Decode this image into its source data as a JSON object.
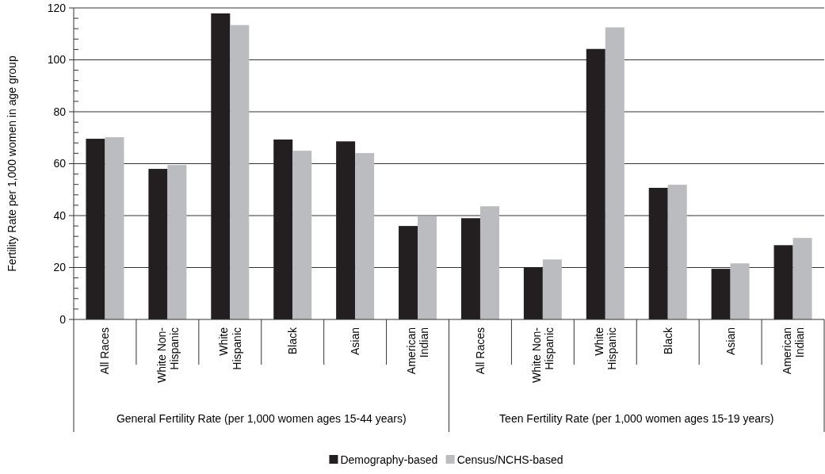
{
  "chart_data": {
    "type": "bar",
    "ylabel": "Fertility Rate per 1,000 women in age group",
    "categories": [
      "All Races",
      "White Non-Hispanic",
      "White Hispanic",
      "Black",
      "Asian",
      "American Indian",
      "All Races",
      "White Non-Hispanic",
      "White Hispanic",
      "Black",
      "Asian",
      "American Indian"
    ],
    "series": [
      {
        "name": "Demography-based",
        "color": "#231f20",
        "values": [
          69.6,
          58.0,
          117.9,
          69.3,
          68.6,
          36.0,
          39.0,
          20.1,
          104.2,
          50.7,
          19.5,
          28.6
        ]
      },
      {
        "name": "Census/NCHS-based",
        "color": "#bbbcbf",
        "values": [
          70.2,
          59.5,
          113.4,
          65.0,
          64.1,
          39.8,
          43.6,
          23.1,
          112.5,
          51.9,
          21.6,
          31.4
        ]
      }
    ],
    "ylim": [
      0,
      120
    ],
    "yticks": [
      0,
      {
        "value": 4,
        "label": null
      },
      {
        "value": 8,
        "label": null
      },
      {
        "value": 12,
        "label": null
      },
      {
        "value": 16,
        "label": null
      },
      20,
      {
        "value": 24,
        "label": null
      },
      {
        "value": 28,
        "label": null
      },
      {
        "value": 32,
        "label": null
      },
      {
        "value": 36,
        "label": null
      },
      40,
      {
        "value": 44,
        "label": null
      },
      {
        "value": 48,
        "label": null
      },
      {
        "value": 52,
        "label": null
      },
      {
        "value": 56,
        "label": null
      },
      60,
      {
        "value": 64,
        "label": null
      },
      {
        "value": 68,
        "label": null
      },
      {
        "value": 72,
        "label": null
      },
      {
        "value": 76,
        "label": null
      },
      80,
      {
        "value": 84,
        "label": null
      },
      {
        "value": 88,
        "label": null
      },
      {
        "value": 92,
        "label": null
      },
      {
        "value": 96,
        "label": null
      },
      100,
      {
        "value": 104,
        "label": null
      },
      {
        "value": 108,
        "label": null
      },
      {
        "value": 112,
        "label": null
      },
      {
        "value": 116,
        "label": null
      },
      120
    ],
    "annotations": [
      "General Fertility Rate (per 1,000 women ages 15-44 years)",
      "Teen Fertility Rate (per 1,000 women ages 15-19 years)"
    ],
    "grid": "y",
    "legend": "bottom"
  }
}
